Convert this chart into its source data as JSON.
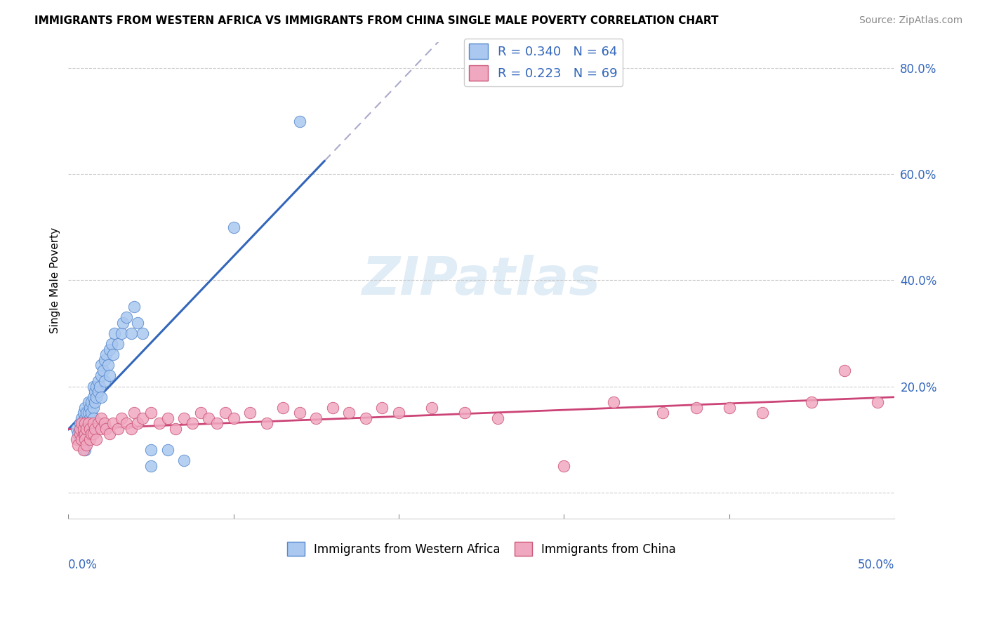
{
  "title": "IMMIGRANTS FROM WESTERN AFRICA VS IMMIGRANTS FROM CHINA SINGLE MALE POVERTY CORRELATION CHART",
  "source": "Source: ZipAtlas.com",
  "ylabel": "Single Male Poverty",
  "yaxis_ticks": [
    0.0,
    0.2,
    0.4,
    0.6,
    0.8
  ],
  "yaxis_labels": [
    "",
    "20.0%",
    "40.0%",
    "60.0%",
    "80.0%"
  ],
  "xlim": [
    0.0,
    0.5
  ],
  "ylim": [
    -0.05,
    0.85
  ],
  "watermark": "ZIPatlas",
  "series1_color": "#aac8f0",
  "series2_color": "#f0a8c0",
  "series1_edge_color": "#5588cc",
  "series2_edge_color": "#cc5577",
  "series1_line_color": "#3366bb",
  "series2_line_color": "#cc4477",
  "dash_color": "#aaaacc",
  "series1_label": "Immigrants from Western Africa",
  "series2_label": "Immigrants from China",
  "series1_R": 0.34,
  "series1_N": 64,
  "series2_R": 0.223,
  "series2_N": 69,
  "series1_x": [
    0.005,
    0.006,
    0.007,
    0.007,
    0.008,
    0.008,
    0.008,
    0.009,
    0.009,
    0.009,
    0.01,
    0.01,
    0.01,
    0.01,
    0.01,
    0.01,
    0.011,
    0.011,
    0.011,
    0.012,
    0.012,
    0.012,
    0.013,
    0.013,
    0.014,
    0.014,
    0.015,
    0.015,
    0.015,
    0.015,
    0.016,
    0.016,
    0.017,
    0.017,
    0.018,
    0.018,
    0.019,
    0.02,
    0.02,
    0.02,
    0.021,
    0.022,
    0.022,
    0.023,
    0.024,
    0.025,
    0.025,
    0.026,
    0.027,
    0.028,
    0.03,
    0.032,
    0.033,
    0.035,
    0.038,
    0.04,
    0.042,
    0.045,
    0.05,
    0.05,
    0.06,
    0.07,
    0.1,
    0.14
  ],
  "series1_y": [
    0.12,
    0.11,
    0.1,
    0.13,
    0.1,
    0.12,
    0.14,
    0.11,
    0.13,
    0.15,
    0.1,
    0.12,
    0.14,
    0.16,
    0.12,
    0.08,
    0.13,
    0.15,
    0.11,
    0.13,
    0.15,
    0.17,
    0.14,
    0.16,
    0.15,
    0.17,
    0.16,
    0.18,
    0.14,
    0.2,
    0.17,
    0.19,
    0.18,
    0.2,
    0.19,
    0.21,
    0.2,
    0.22,
    0.24,
    0.18,
    0.23,
    0.25,
    0.21,
    0.26,
    0.24,
    0.27,
    0.22,
    0.28,
    0.26,
    0.3,
    0.28,
    0.3,
    0.32,
    0.33,
    0.3,
    0.35,
    0.32,
    0.3,
    0.05,
    0.08,
    0.08,
    0.06,
    0.5,
    0.7
  ],
  "series2_x": [
    0.005,
    0.006,
    0.007,
    0.007,
    0.008,
    0.008,
    0.009,
    0.009,
    0.009,
    0.01,
    0.01,
    0.01,
    0.011,
    0.011,
    0.012,
    0.013,
    0.013,
    0.014,
    0.015,
    0.015,
    0.016,
    0.017,
    0.018,
    0.02,
    0.02,
    0.022,
    0.023,
    0.025,
    0.027,
    0.03,
    0.032,
    0.035,
    0.038,
    0.04,
    0.042,
    0.045,
    0.05,
    0.055,
    0.06,
    0.065,
    0.07,
    0.075,
    0.08,
    0.085,
    0.09,
    0.095,
    0.1,
    0.11,
    0.12,
    0.13,
    0.14,
    0.15,
    0.16,
    0.17,
    0.18,
    0.19,
    0.2,
    0.22,
    0.24,
    0.26,
    0.3,
    0.33,
    0.36,
    0.38,
    0.4,
    0.42,
    0.45,
    0.47,
    0.49
  ],
  "series2_y": [
    0.1,
    0.09,
    0.11,
    0.12,
    0.1,
    0.13,
    0.11,
    0.12,
    0.08,
    0.11,
    0.13,
    0.1,
    0.12,
    0.09,
    0.13,
    0.12,
    0.1,
    0.11,
    0.13,
    0.11,
    0.12,
    0.1,
    0.13,
    0.12,
    0.14,
    0.13,
    0.12,
    0.11,
    0.13,
    0.12,
    0.14,
    0.13,
    0.12,
    0.15,
    0.13,
    0.14,
    0.15,
    0.13,
    0.14,
    0.12,
    0.14,
    0.13,
    0.15,
    0.14,
    0.13,
    0.15,
    0.14,
    0.15,
    0.13,
    0.16,
    0.15,
    0.14,
    0.16,
    0.15,
    0.14,
    0.16,
    0.15,
    0.16,
    0.15,
    0.14,
    0.05,
    0.17,
    0.15,
    0.16,
    0.16,
    0.15,
    0.17,
    0.23,
    0.17
  ],
  "solid_line_x_end": 0.155,
  "solid_line_x_start": 0.0,
  "dash_line_x_start": 0.155,
  "dash_line_x_end": 0.5
}
